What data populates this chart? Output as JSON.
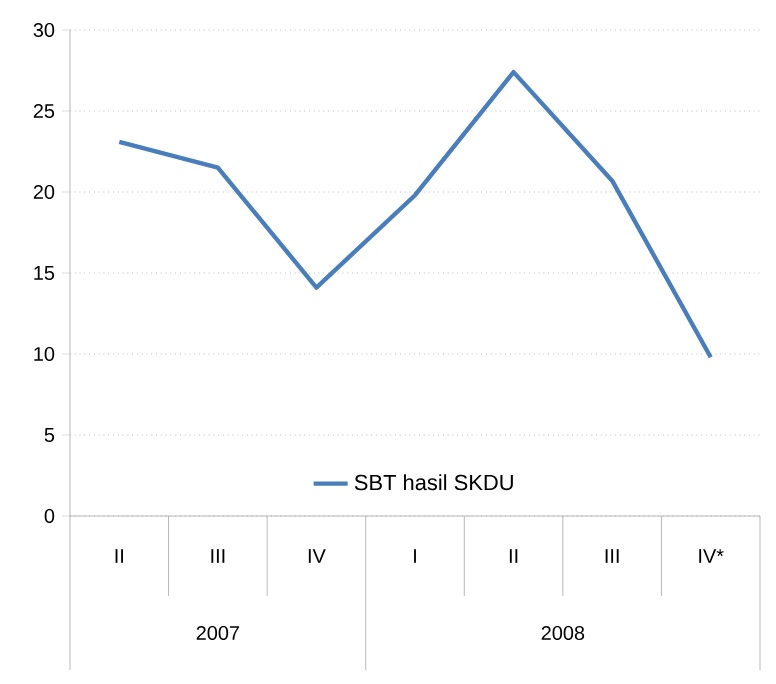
{
  "chart_data": {
    "type": "line",
    "categories": [
      "II",
      "III",
      "IV",
      "I",
      "II",
      "III",
      "IV*"
    ],
    "series": [
      {
        "name": "SBT hasil SKDU",
        "color": "#4a7ebb",
        "values": [
          23.1,
          21.5,
          14.1,
          19.8,
          27.4,
          20.7,
          9.8
        ]
      }
    ],
    "ylim": [
      0,
      30
    ],
    "yticks": [
      0,
      5,
      10,
      15,
      20,
      25,
      30
    ],
    "grid": "y",
    "legend": "bottom",
    "marker": "none",
    "line_style": "solid",
    "annotations": [
      "2007",
      "2008"
    ]
  }
}
